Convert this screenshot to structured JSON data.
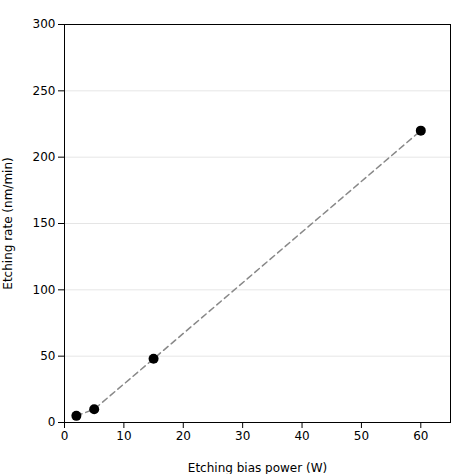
{
  "chart_data": {
    "type": "line",
    "x": [
      2,
      5,
      15,
      60
    ],
    "values": [
      5,
      10,
      48,
      220
    ],
    "xlabel": "Etching bias power (W)",
    "ylabel": "Etching rate (nm/min)",
    "xlim": [
      0,
      65
    ],
    "ylim": [
      0,
      300
    ],
    "xticks": [
      0,
      10,
      20,
      30,
      40,
      50,
      60
    ],
    "yticks": [
      0,
      50,
      100,
      150,
      200,
      250,
      300
    ],
    "grid": "y",
    "marker": "circle",
    "line_style": "dashed"
  }
}
